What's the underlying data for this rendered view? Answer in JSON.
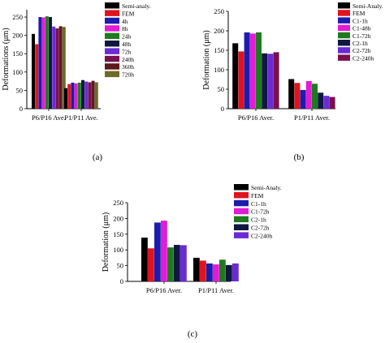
{
  "captions": [
    "(a)",
    "(b)",
    "(c)"
  ],
  "chart_data": [
    {
      "type": "bar",
      "ylabel": "Deformations (μm)",
      "ylim": [
        0,
        270
      ],
      "yticks": [
        0,
        50,
        100,
        150,
        200,
        250
      ],
      "categories": [
        "P6/P16 Ave.",
        "P1/P11 Ave."
      ],
      "legend_position": "top-right",
      "series": [
        {
          "name": "Semi-analy.",
          "color": "#000000",
          "values": [
            204,
            56
          ]
        },
        {
          "name": "FEM",
          "color": "#e0141e",
          "values": [
            176,
            67
          ]
        },
        {
          "name": "4h",
          "color": "#1c1cae",
          "values": [
            250,
            71
          ]
        },
        {
          "name": "8h",
          "color": "#e31bd4",
          "values": [
            249,
            69
          ]
        },
        {
          "name": "24h",
          "color": "#1f7a1f",
          "values": [
            252,
            71
          ]
        },
        {
          "name": "48h",
          "color": "#101840",
          "values": [
            250,
            78
          ]
        },
        {
          "name": "72h",
          "color": "#6a2bd4",
          "values": [
            224,
            74
          ]
        },
        {
          "name": "240h",
          "color": "#7a1050",
          "values": [
            219,
            72
          ]
        },
        {
          "name": "360h",
          "color": "#5c1a1a",
          "values": [
            225,
            76
          ]
        },
        {
          "name": "720h",
          "color": "#6e6a28",
          "values": [
            223,
            72
          ]
        }
      ]
    },
    {
      "type": "bar",
      "ylabel": "Deformation (μm)",
      "ylim": [
        0,
        250
      ],
      "yticks": [
        0,
        50,
        100,
        150,
        200,
        250
      ],
      "categories": [
        "P6/P16 Aver.",
        "P1/P11 Aver."
      ],
      "legend_position": "top-right",
      "series": [
        {
          "name": "Semi-Analy.",
          "color": "#000000",
          "values": [
            168,
            76
          ]
        },
        {
          "name": "FEM",
          "color": "#e0141e",
          "values": [
            147,
            66
          ]
        },
        {
          "name": "C1-1h",
          "color": "#1c1cae",
          "values": [
            196,
            48
          ]
        },
        {
          "name": "C1-48h",
          "color": "#e31bd4",
          "values": [
            193,
            71
          ]
        },
        {
          "name": "C1-72h",
          "color": "#1f7a1f",
          "values": [
            196,
            64
          ]
        },
        {
          "name": "C2-1h",
          "color": "#101840",
          "values": [
            142,
            41
          ]
        },
        {
          "name": "C2-72h",
          "color": "#6a2bd4",
          "values": [
            141,
            33
          ]
        },
        {
          "name": "C2-240h",
          "color": "#7a1050",
          "values": [
            145,
            30
          ]
        }
      ]
    },
    {
      "type": "bar",
      "ylabel": "Deformation (μm)",
      "ylim": [
        0,
        250
      ],
      "yticks": [
        0,
        50,
        100,
        150,
        200,
        250
      ],
      "categories": [
        "P6/P16 Aver.",
        "P1/P11 Aver."
      ],
      "legend_position": "top-right",
      "series": [
        {
          "name": "Semi-Analy.",
          "color": "#000000",
          "values": [
            139,
            75
          ]
        },
        {
          "name": "FEM",
          "color": "#e0141e",
          "values": [
            105,
            66
          ]
        },
        {
          "name": "C1-1h",
          "color": "#1c1cae",
          "values": [
            187,
            57
          ]
        },
        {
          "name": "C1-72h",
          "color": "#e31bd4",
          "values": [
            193,
            54
          ]
        },
        {
          "name": "C2-1h",
          "color": "#1f7a1f",
          "values": [
            108,
            69
          ]
        },
        {
          "name": "C2-72h",
          "color": "#101840",
          "values": [
            116,
            52
          ]
        },
        {
          "name": "C2-240h",
          "color": "#6a2bd4",
          "values": [
            115,
            57
          ]
        }
      ]
    }
  ]
}
